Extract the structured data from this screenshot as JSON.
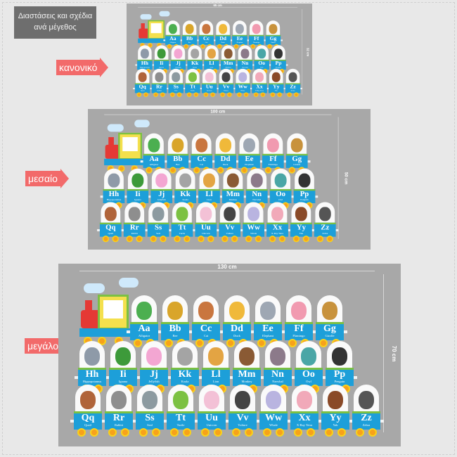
{
  "header": {
    "line1": "Διαστάσεις και σχέδια",
    "line2": "ανά μέγεθος"
  },
  "colors": {
    "panel": "#a8a8a8",
    "arrow": "#f26a6a",
    "car_box": "#1d9fd9",
    "car_stripe": "#7bc043",
    "wheel": "#f7a21b"
  },
  "sizes": [
    {
      "label": "κανονικό",
      "width": "65 cm",
      "height": "32 cm"
    },
    {
      "label": "μεσαίο",
      "width": "100 cm",
      "height": "50 cm"
    },
    {
      "label": "μεγάλο",
      "width": "130 cm",
      "height": "70 cm"
    }
  ],
  "rows": [
    [
      [
        "Aa",
        "Alligator",
        "#4caf50"
      ],
      [
        "Bb",
        "Bee",
        "#d9a52a"
      ],
      [
        "Cc",
        "Cat",
        "#c9763f"
      ],
      [
        "Dd",
        "Duck",
        "#f0b93a"
      ],
      [
        "Ee",
        "Elephant",
        "#9ea7b3"
      ],
      [
        "Ff",
        "Flamingo",
        "#f19ab0"
      ],
      [
        "Gg",
        "Giraffe",
        "#c8923c"
      ]
    ],
    [
      [
        "Hh",
        "Hippopotamus",
        "#8e9aa8"
      ],
      [
        "Ii",
        "Iguana",
        "#3d9a3a"
      ],
      [
        "Jj",
        "Jellyfish",
        "#f3a6d2"
      ],
      [
        "Kk",
        "Koala",
        "#a4a4a4"
      ],
      [
        "Ll",
        "Lion",
        "#e3a443"
      ],
      [
        "Mm",
        "Monkey",
        "#8a5a34"
      ],
      [
        "Nn",
        "Narwhal",
        "#8c7a8a"
      ],
      [
        "Oo",
        "Owl",
        "#4aa6a6"
      ],
      [
        "Pp",
        "Penguin",
        "#333333"
      ]
    ],
    [
      [
        "Qq",
        "Quail",
        "#b0643a"
      ],
      [
        "Rr",
        "Rabbit",
        "#8e8e8e"
      ],
      [
        "Ss",
        "Seal",
        "#8c9aa0"
      ],
      [
        "Tt",
        "Turtle",
        "#7cc142"
      ],
      [
        "Uu",
        "Unicorn",
        "#f3c1d6"
      ],
      [
        "Vv",
        "Vulture",
        "#444444"
      ],
      [
        "Ww",
        "Whale",
        "#b9b4e0"
      ],
      [
        "Xx",
        "X-Ray Tetra",
        "#f1a9b9"
      ],
      [
        "Yy",
        "Yak",
        "#8a4a28"
      ],
      [
        "Zz",
        "Zebra",
        "#555555"
      ]
    ]
  ]
}
